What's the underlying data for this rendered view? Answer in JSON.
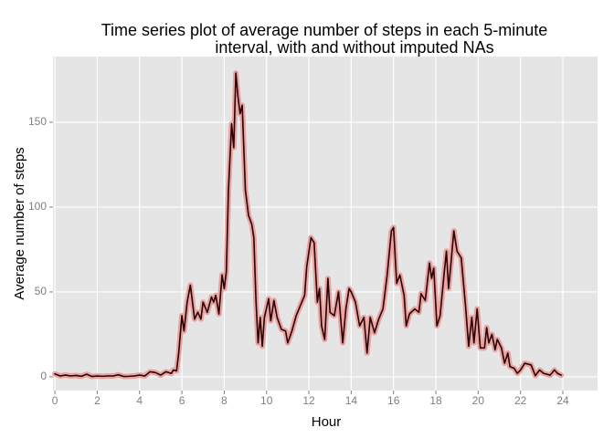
{
  "chart_data": {
    "type": "line",
    "title": [
      "Time series plot of average number of steps in each 5-minute",
      "interval, with and without imputed NAs"
    ],
    "x_label": "Hour",
    "y_label": "Average number of steps",
    "xlim": [
      -0.09,
      25.64
    ],
    "ylim": [
      -8.1,
      188.7
    ],
    "xticks": [
      0,
      2,
      4,
      6,
      8,
      10,
      12,
      14,
      16,
      18,
      20,
      22,
      24
    ],
    "yticks": [
      0,
      50,
      100,
      150
    ],
    "grid": true,
    "x": [
      0,
      0.25,
      0.5,
      0.75,
      1,
      1.25,
      1.5,
      1.75,
      2,
      2.25,
      2.5,
      2.75,
      3,
      3.25,
      3.5,
      3.75,
      4,
      4.25,
      4.5,
      4.75,
      5,
      5.25,
      5.5,
      5.6,
      5.75,
      5.85,
      6,
      6.1,
      6.25,
      6.4,
      6.5,
      6.6,
      6.75,
      6.9,
      7,
      7.2,
      7.4,
      7.5,
      7.6,
      7.75,
      7.9,
      8,
      8.1,
      8.2,
      8.35,
      8.45,
      8.55,
      8.65,
      8.75,
      8.85,
      9,
      9.15,
      9.3,
      9.4,
      9.5,
      9.6,
      9.7,
      9.8,
      9.9,
      10.1,
      10.2,
      10.35,
      10.5,
      10.7,
      10.9,
      11,
      11.2,
      11.4,
      11.6,
      11.8,
      11.9,
      12.1,
      12.25,
      12.4,
      12.5,
      12.6,
      12.75,
      12.9,
      13,
      13.2,
      13.4,
      13.6,
      13.75,
      13.9,
      14,
      14.2,
      14.4,
      14.6,
      14.75,
      14.9,
      15.1,
      15.3,
      15.5,
      15.7,
      15.9,
      16,
      16.15,
      16.3,
      16.5,
      16.6,
      16.75,
      17,
      17.2,
      17.3,
      17.5,
      17.7,
      17.8,
      17.9,
      18.05,
      18.2,
      18.4,
      18.5,
      18.6,
      18.7,
      18.85,
      19,
      19.2,
      19.4,
      19.55,
      19.7,
      19.8,
      19.95,
      20.1,
      20.3,
      20.4,
      20.5,
      20.65,
      20.8,
      20.9,
      21.1,
      21.25,
      21.4,
      21.5,
      21.7,
      21.85,
      22,
      22.2,
      22.5,
      22.7,
      22.9,
      23.1,
      23.4,
      23.6,
      23.75,
      23.92
    ],
    "series": [
      {
        "color": "#e8a3a3",
        "values": [
          1.7,
          0.5,
          1,
          0.5,
          0.8,
          0.3,
          1.5,
          0.2,
          0.5,
          0.3,
          0.5,
          0.5,
          1.2,
          0.2,
          0.3,
          0.5,
          1,
          0.5,
          3,
          2.5,
          1,
          3,
          2,
          4,
          3.5,
          14,
          36,
          27,
          44,
          54,
          44,
          34,
          38,
          34,
          44,
          38,
          47,
          44,
          48,
          37,
          60,
          52,
          62,
          110,
          149,
          135,
          179,
          165,
          155,
          160,
          110,
          95,
          90,
          82,
          45,
          20,
          35,
          18,
          35,
          46,
          33,
          45,
          35,
          28,
          27,
          20,
          27,
          36,
          42,
          48,
          65,
          82,
          79,
          44,
          52,
          30,
          22,
          58,
          38,
          36,
          50,
          20,
          40,
          52,
          50,
          44,
          30,
          35,
          14,
          35,
          26,
          34,
          40,
          60,
          86,
          88,
          55,
          60,
          48,
          30,
          37,
          40,
          38,
          49,
          45,
          67,
          58,
          64,
          30,
          36,
          62,
          74,
          52,
          65,
          86,
          74,
          70,
          42,
          18,
          35,
          20,
          40,
          17,
          17,
          29,
          20,
          25,
          16,
          22,
          17,
          8,
          14,
          6,
          5,
          2,
          4,
          8,
          7,
          0.7,
          4,
          2,
          1,
          4,
          2,
          1
        ]
      },
      {
        "color": "#2b0000",
        "values": [
          1.7,
          0.5,
          1,
          0.5,
          0.8,
          0.3,
          1.5,
          0.2,
          0.5,
          0.3,
          0.5,
          0.5,
          1.2,
          0.2,
          0.3,
          0.5,
          1,
          0.5,
          3,
          2.5,
          1,
          3,
          2,
          4,
          3.5,
          14,
          36,
          27,
          44,
          54,
          44,
          34,
          38,
          34,
          44,
          38,
          47,
          44,
          48,
          37,
          60,
          52,
          62,
          110,
          149,
          135,
          179,
          165,
          155,
          160,
          110,
          95,
          90,
          82,
          45,
          20,
          35,
          18,
          35,
          46,
          33,
          45,
          35,
          28,
          27,
          20,
          27,
          36,
          42,
          48,
          65,
          82,
          79,
          44,
          52,
          30,
          22,
          58,
          38,
          36,
          50,
          20,
          40,
          52,
          50,
          44,
          30,
          35,
          14,
          35,
          26,
          34,
          40,
          60,
          86,
          88,
          55,
          60,
          48,
          30,
          37,
          40,
          38,
          49,
          45,
          67,
          58,
          64,
          30,
          36,
          62,
          74,
          52,
          65,
          86,
          74,
          70,
          42,
          18,
          35,
          20,
          40,
          17,
          17,
          29,
          20,
          25,
          16,
          22,
          17,
          8,
          14,
          6,
          5,
          2,
          4,
          8,
          7,
          0.7,
          4,
          2,
          1,
          4,
          2,
          1
        ]
      }
    ]
  }
}
